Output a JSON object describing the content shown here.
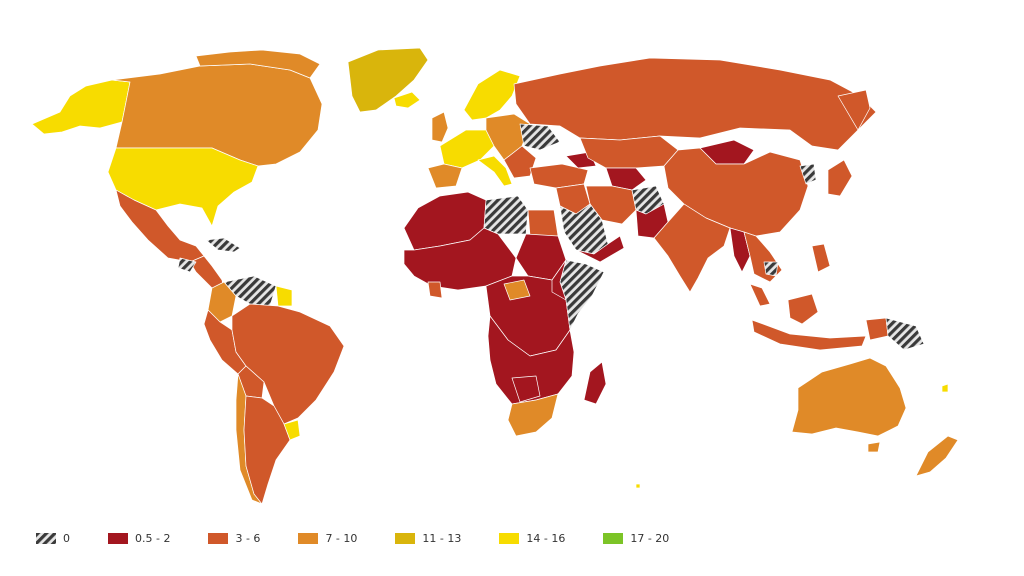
{
  "map": {
    "colors": {
      "c0": "#3a3a3a",
      "c1": "#a3161f",
      "c2": "#d0582a",
      "c3": "#e08a28",
      "c4": "#d9b50c",
      "c5": "#f7dc00",
      "c6": "#7cc427"
    },
    "legend": [
      {
        "label": "0",
        "color_key": "c0",
        "hatched": true
      },
      {
        "label": "0.5 - 2",
        "color_key": "c1",
        "hatched": false
      },
      {
        "label": "3 - 6",
        "color_key": "c2",
        "hatched": false
      },
      {
        "label": "7 - 10",
        "color_key": "c3",
        "hatched": false
      },
      {
        "label": "11 - 13",
        "color_key": "c4",
        "hatched": false
      },
      {
        "label": "14 - 16",
        "color_key": "c5",
        "hatched": false
      },
      {
        "label": "17 - 20",
        "color_key": "c6",
        "hatched": false
      }
    ]
  }
}
